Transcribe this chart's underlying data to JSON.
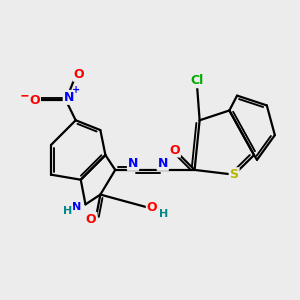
{
  "bg_color": "#ececec",
  "atoms": {
    "S": {
      "color": "#b8b800"
    },
    "O": {
      "color": "#ff0000"
    },
    "N": {
      "color": "#0000ff"
    },
    "Cl": {
      "color": "#00aa00"
    },
    "H": {
      "color": "#008888"
    }
  },
  "lw": 1.6
}
